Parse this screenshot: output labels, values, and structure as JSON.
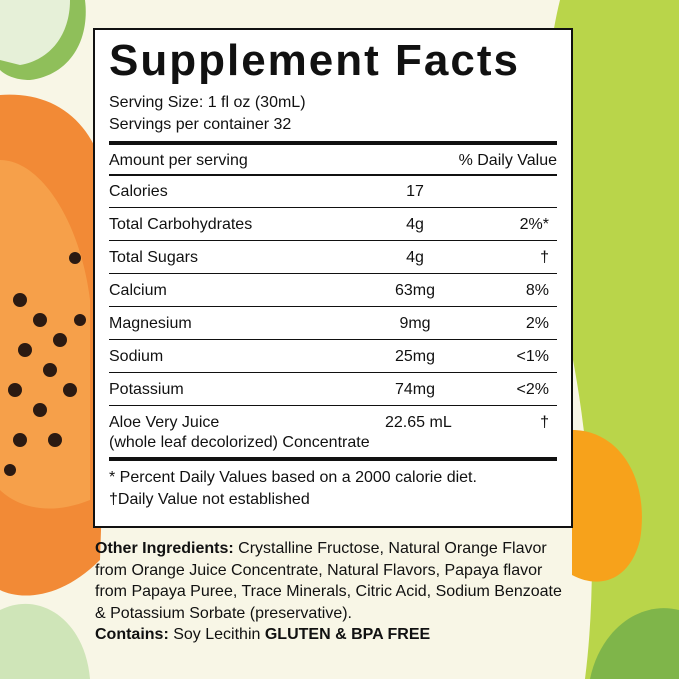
{
  "label": {
    "title": "Supplement Facts",
    "serving_size": "Serving Size: 1 fl oz (30mL)",
    "servings_per_container": "Servings per container 32",
    "header": {
      "amount": "Amount per serving",
      "daily_value": "% Daily Value"
    },
    "rows": [
      {
        "name": "Calories",
        "amount": "17"
      },
      {
        "name": "Total Carbohydrates",
        "amount": "4g",
        "daily_value": "2%*"
      },
      {
        "name": "Total Sugars",
        "amount": "4g",
        "daily_value": "†"
      },
      {
        "name": "Calcium",
        "amount": "63mg",
        "daily_value": "8%"
      },
      {
        "name": "Magnesium",
        "amount": "9mg",
        "daily_value": "2%"
      },
      {
        "name": "Sodium",
        "amount": "25mg",
        "daily_value": "<1%"
      },
      {
        "name": "Potassium",
        "amount": "74mg",
        "daily_value": "<2%"
      },
      {
        "name": "Aloe Very Juice",
        "note": "(whole leaf decolorized) Concentrate",
        "amount": "22.65 mL",
        "daily_value": "†"
      }
    ],
    "footnotes": [
      "* Percent Daily Values based on a 2000 calorie diet.",
      "†Daily Value not established"
    ]
  },
  "ingredients": {
    "other_label": "Other Ingredients:",
    "other_text": "Crystalline Fructose, Natural Orange Flavor from Orange Juice Concentrate, Natural Flavors, Papaya flavor from Papaya Puree, Trace Minerals, Citric Acid, Sodium Benzoate & Potassium Sorbate (preservative).",
    "contains_label": "Contains:",
    "contains_text": "Soy Lecithin",
    "free_text": "GLUTEN & BPA FREE"
  }
}
